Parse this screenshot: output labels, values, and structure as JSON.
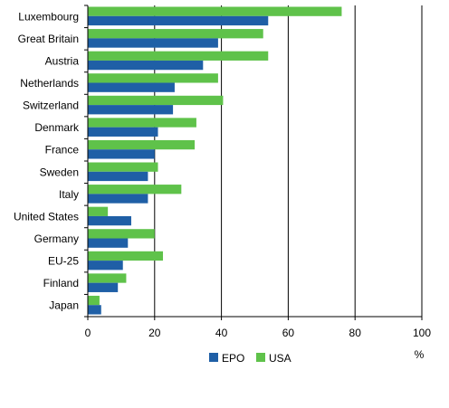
{
  "chart_data": {
    "type": "bar",
    "orientation": "horizontal",
    "title": "",
    "xlabel": "",
    "ylabel": "",
    "unit_label": "%",
    "categories": [
      "Luxembourg",
      "Great Britain",
      "Austria",
      "Netherlands",
      "Switzerland",
      "Denmark",
      "France",
      "Sweden",
      "Italy",
      "United States",
      "Germany",
      "EU-25",
      "Finland",
      "Japan"
    ],
    "series": [
      {
        "name": "EPO",
        "color": "#1f5fa6",
        "values": [
          54,
          39,
          34.5,
          26,
          25.5,
          21,
          20,
          18,
          18,
          13,
          12,
          10.5,
          9,
          4
        ]
      },
      {
        "name": "USA",
        "color": "#5fc24a",
        "values": [
          76,
          52.5,
          54,
          39,
          40.5,
          32.5,
          32,
          21,
          28,
          6,
          20,
          22.5,
          11.5,
          3.5
        ]
      }
    ],
    "xlim": [
      0,
      100
    ],
    "xticks": [
      "0",
      "20",
      "40",
      "60",
      "80",
      "100"
    ],
    "grid": "vertical",
    "legend_position": "bottom"
  }
}
